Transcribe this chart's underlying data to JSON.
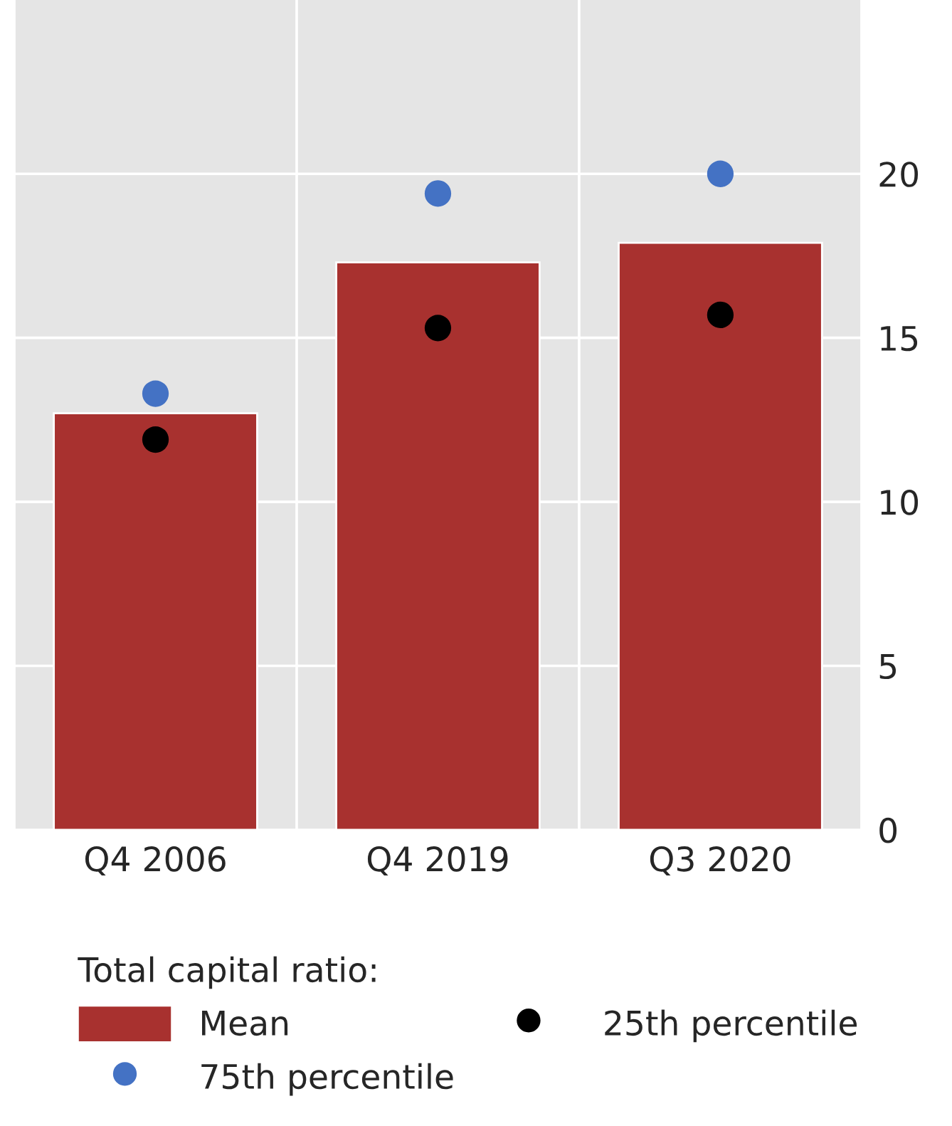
{
  "chart_data": {
    "type": "bar",
    "categories": [
      "Q4 2006",
      "Q4 2019",
      "Q3 2020"
    ],
    "legend_title": "Total capital ratio:",
    "series": [
      {
        "name": "Mean",
        "color": "#a8312f",
        "values": [
          12.7,
          17.3,
          17.9
        ]
      },
      {
        "name": "25th percentile",
        "type": "scatter",
        "color": "#000000",
        "x": [
          "Q4 2006",
          "Q4 2019",
          "Q3 2020"
        ],
        "values": [
          11.9,
          15.3,
          15.7
        ]
      },
      {
        "name": "75th percentile",
        "type": "scatter",
        "color": "#4472c4",
        "x": [
          "Q4 2006",
          "Q4 2019",
          "Q3 2020"
        ],
        "values": [
          13.3,
          19.4,
          20.0
        ]
      }
    ],
    "ylim": [
      0,
      25.3
    ],
    "yticks": [
      0,
      5,
      10,
      15,
      20
    ],
    "grid": true,
    "legend": "bottom",
    "marker": "circle"
  }
}
